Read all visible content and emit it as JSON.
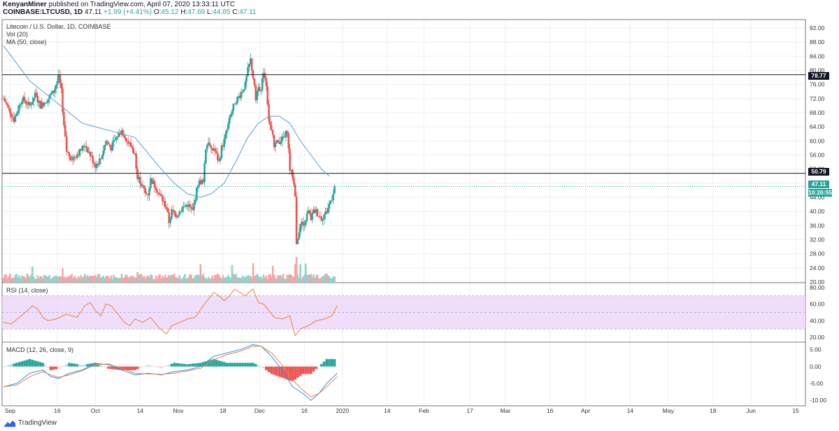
{
  "header": {
    "user": "KenyanMiner",
    "published": " published on TradingView.com, April 07, 2020 13:33:11 UTC",
    "symbol": "COINBASE:LTCUSD, 1D",
    "last": "47.11",
    "change": "+1.99 (+4.41%)",
    "o_label": "O:",
    "o": "45.12",
    "h_label": "H:",
    "h": "47.69",
    "l_label": "L:",
    "l": "44.85",
    "c_label": "C:",
    "c": "47.11"
  },
  "overlays": {
    "title": "Litecoin / U.S. Dollar, 1D, COINBASE",
    "vol": "Vol (20)",
    "ma": "MA (50, close)",
    "rsi": "RSI (14, close)",
    "macd": "MACD (12, 26, close, 9)"
  },
  "price_tags": {
    "resistance_upper": "78.77",
    "resistance_lower": "50.79",
    "last_price": "47.11",
    "countdown": "10:26:55"
  },
  "footer": {
    "brand": "TradingView"
  },
  "colors": {
    "up": "#26a69a",
    "down": "#ef5350",
    "ma": "#5b9bd5",
    "rsi": "#f57c3b",
    "rsi_band": "#ead6f8",
    "signal": "#f57c3b"
  },
  "chart_data": {
    "type": "candlestick",
    "symbol": "COINBASE:LTCUSD",
    "interval": "1D",
    "x_ticks": [
      "Sep",
      "16",
      "Oct",
      "14",
      "Nov",
      "18",
      "Dec",
      "16",
      "2020",
      "14",
      "Feb",
      "17",
      "Mar",
      "16",
      "Apr",
      "14",
      "May",
      "18",
      "Jun",
      "15"
    ],
    "price_axis": {
      "ticks": [
        "92.00",
        "88.00",
        "84.00",
        "80.00",
        "76.00",
        "72.00",
        "68.00",
        "64.00",
        "60.00",
        "56.00",
        "52.00",
        "48.00",
        "44.00",
        "40.00",
        "36.00",
        "32.00",
        "28.00",
        "24.00",
        "20.00"
      ],
      "ylim": [
        20,
        94
      ]
    },
    "horizontal_levels": [
      78.77,
      50.79
    ],
    "price_path": [
      [
        0,
        72
      ],
      [
        8,
        66
      ],
      [
        14,
        72
      ],
      [
        20,
        70
      ],
      [
        24,
        73
      ],
      [
        28,
        70
      ],
      [
        34,
        72
      ],
      [
        38,
        74
      ],
      [
        42,
        78
      ],
      [
        44,
        74
      ],
      [
        46,
        64
      ],
      [
        48,
        57
      ],
      [
        52,
        55
      ],
      [
        58,
        57
      ],
      [
        62,
        59
      ],
      [
        66,
        56
      ],
      [
        70,
        53
      ],
      [
        74,
        55
      ],
      [
        78,
        60
      ],
      [
        82,
        58
      ],
      [
        86,
        61
      ],
      [
        90,
        63
      ],
      [
        94,
        60
      ],
      [
        98,
        58
      ],
      [
        100,
        56
      ],
      [
        102,
        50
      ],
      [
        106,
        47
      ],
      [
        108,
        45
      ],
      [
        110,
        45
      ],
      [
        112,
        49
      ],
      [
        116,
        47
      ],
      [
        118,
        45
      ],
      [
        120,
        44
      ],
      [
        124,
        41
      ],
      [
        126,
        37
      ],
      [
        128,
        40
      ],
      [
        132,
        39
      ],
      [
        136,
        41
      ],
      [
        140,
        42
      ],
      [
        144,
        40
      ],
      [
        146,
        44
      ],
      [
        148,
        48
      ],
      [
        152,
        49
      ],
      [
        154,
        58
      ],
      [
        156,
        60
      ],
      [
        158,
        57
      ],
      [
        160,
        58
      ],
      [
        164,
        54
      ],
      [
        166,
        58
      ],
      [
        168,
        60
      ],
      [
        172,
        66
      ],
      [
        176,
        71
      ],
      [
        180,
        73
      ],
      [
        184,
        76
      ],
      [
        186,
        80
      ],
      [
        188,
        83
      ],
      [
        190,
        78
      ],
      [
        192,
        72
      ],
      [
        194,
        76
      ],
      [
        196,
        74
      ],
      [
        198,
        80
      ],
      [
        200,
        76
      ],
      [
        202,
        66
      ],
      [
        206,
        59
      ],
      [
        210,
        60
      ],
      [
        214,
        61
      ],
      [
        216,
        63
      ],
      [
        218,
        52
      ],
      [
        220,
        50
      ],
      [
        222,
        45
      ],
      [
        223,
        30
      ],
      [
        224,
        32
      ],
      [
        226,
        37
      ],
      [
        228,
        36
      ],
      [
        230,
        38
      ],
      [
        232,
        40
      ],
      [
        234,
        38
      ],
      [
        236,
        40
      ],
      [
        238,
        40
      ],
      [
        240,
        39
      ],
      [
        242,
        38
      ],
      [
        244,
        39
      ],
      [
        246,
        40
      ],
      [
        248,
        42
      ],
      [
        250,
        44
      ],
      [
        252,
        47.11
      ]
    ],
    "ma50_path": [
      [
        0,
        87
      ],
      [
        20,
        77
      ],
      [
        40,
        71
      ],
      [
        60,
        65
      ],
      [
        80,
        63
      ],
      [
        100,
        61
      ],
      [
        120,
        52
      ],
      [
        130,
        48
      ],
      [
        140,
        45
      ],
      [
        150,
        44
      ],
      [
        158,
        45
      ],
      [
        168,
        48
      ],
      [
        178,
        55
      ],
      [
        186,
        61
      ],
      [
        194,
        65
      ],
      [
        202,
        67
      ],
      [
        210,
        67
      ],
      [
        218,
        65
      ],
      [
        226,
        60
      ],
      [
        234,
        56
      ],
      [
        242,
        52
      ],
      [
        248,
        50
      ]
    ],
    "rsi": {
      "levels": [
        70,
        30
      ],
      "ticks": [
        "80.00",
        "60.00",
        "40.00",
        "20.00"
      ],
      "ylim": [
        15,
        85
      ],
      "path": [
        [
          0,
          38
        ],
        [
          6,
          36
        ],
        [
          12,
          44
        ],
        [
          18,
          52
        ],
        [
          22,
          58
        ],
        [
          26,
          54
        ],
        [
          30,
          44
        ],
        [
          34,
          40
        ],
        [
          40,
          42
        ],
        [
          48,
          48
        ],
        [
          56,
          44
        ],
        [
          62,
          58
        ],
        [
          66,
          62
        ],
        [
          70,
          52
        ],
        [
          74,
          46
        ],
        [
          78,
          60
        ],
        [
          82,
          58
        ],
        [
          86,
          50
        ],
        [
          92,
          38
        ],
        [
          96,
          34
        ],
        [
          100,
          42
        ],
        [
          106,
          38
        ],
        [
          112,
          44
        ],
        [
          118,
          32
        ],
        [
          124,
          24
        ],
        [
          128,
          34
        ],
        [
          134,
          38
        ],
        [
          140,
          42
        ],
        [
          146,
          44
        ],
        [
          152,
          58
        ],
        [
          156,
          66
        ],
        [
          160,
          74
        ],
        [
          164,
          70
        ],
        [
          168,
          64
        ],
        [
          172,
          70
        ],
        [
          176,
          78
        ],
        [
          180,
          74
        ],
        [
          184,
          70
        ],
        [
          188,
          76
        ],
        [
          190,
          78
        ],
        [
          194,
          62
        ],
        [
          198,
          60
        ],
        [
          202,
          52
        ],
        [
          206,
          44
        ],
        [
          212,
          42
        ],
        [
          218,
          46
        ],
        [
          222,
          22
        ],
        [
          226,
          30
        ],
        [
          232,
          34
        ],
        [
          238,
          40
        ],
        [
          244,
          42
        ],
        [
          250,
          46
        ],
        [
          254,
          58
        ]
      ]
    },
    "macd": {
      "ticks": [
        "5.00",
        "0.00",
        "-5.00",
        "-10.00"
      ],
      "ylim": [
        -11,
        7
      ],
      "macd_path": [
        [
          0,
          -6
        ],
        [
          10,
          -5
        ],
        [
          20,
          -2
        ],
        [
          30,
          -1
        ],
        [
          36,
          -3
        ],
        [
          42,
          -3.5
        ],
        [
          50,
          -2
        ],
        [
          60,
          -1
        ],
        [
          70,
          1
        ],
        [
          80,
          0.5
        ],
        [
          90,
          -1
        ],
        [
          100,
          -2.5
        ],
        [
          110,
          -2
        ],
        [
          120,
          -2.5
        ],
        [
          130,
          -1.5
        ],
        [
          140,
          -1
        ],
        [
          150,
          0
        ],
        [
          160,
          3
        ],
        [
          170,
          4
        ],
        [
          180,
          5
        ],
        [
          190,
          6.5
        ],
        [
          196,
          6
        ],
        [
          204,
          3
        ],
        [
          212,
          -1
        ],
        [
          220,
          -6
        ],
        [
          228,
          -8
        ],
        [
          234,
          -10
        ],
        [
          240,
          -8
        ],
        [
          246,
          -5
        ],
        [
          254,
          -2
        ]
      ],
      "signal_path": [
        [
          0,
          -6
        ],
        [
          10,
          -5.5
        ],
        [
          20,
          -3
        ],
        [
          30,
          -1.5
        ],
        [
          36,
          -2.5
        ],
        [
          42,
          -3.2
        ],
        [
          50,
          -2.5
        ],
        [
          60,
          -1.2
        ],
        [
          70,
          0.5
        ],
        [
          80,
          0.8
        ],
        [
          90,
          -0.5
        ],
        [
          100,
          -2
        ],
        [
          110,
          -2.2
        ],
        [
          120,
          -2.3
        ],
        [
          130,
          -2
        ],
        [
          140,
          -1.3
        ],
        [
          150,
          -0.5
        ],
        [
          160,
          2
        ],
        [
          170,
          3.5
        ],
        [
          180,
          4.5
        ],
        [
          190,
          6
        ],
        [
          196,
          6
        ],
        [
          204,
          4
        ],
        [
          212,
          0.5
        ],
        [
          220,
          -4
        ],
        [
          228,
          -7
        ],
        [
          234,
          -9
        ],
        [
          240,
          -8
        ],
        [
          246,
          -6
        ],
        [
          254,
          -3
        ]
      ]
    }
  }
}
